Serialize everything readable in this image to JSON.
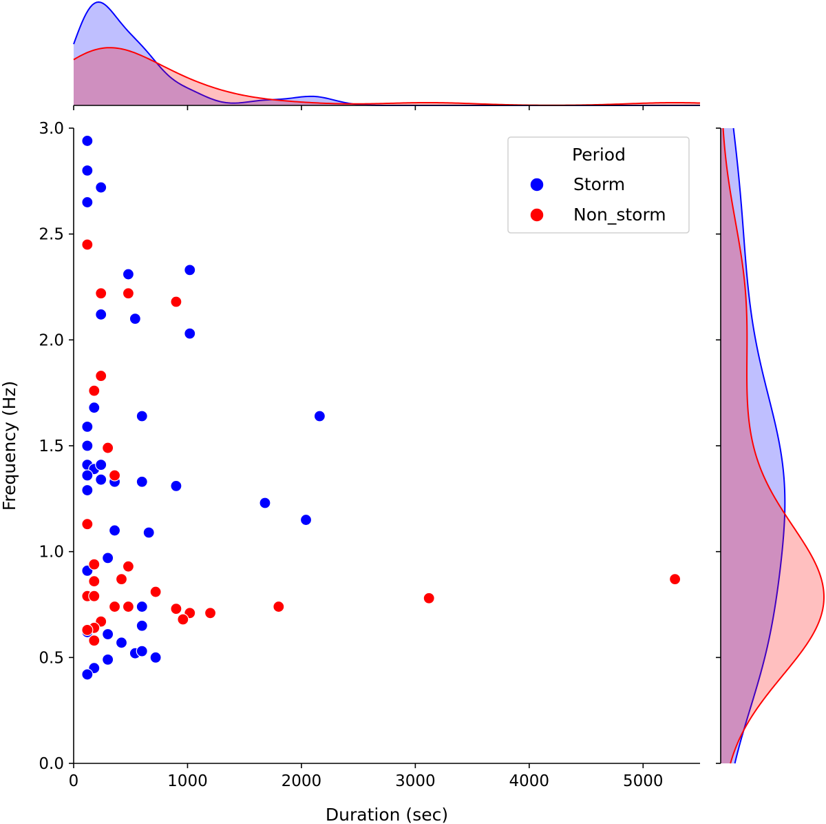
{
  "chart_data": {
    "type": "scatter",
    "xlabel": "Duration (sec)",
    "ylabel": "Frequency (Hz)",
    "xlim": [
      0,
      5500
    ],
    "ylim": [
      0,
      3.0
    ],
    "xticks": [
      "0",
      "1000",
      "2000",
      "3000",
      "4000",
      "5000"
    ],
    "yticks": [
      "0.0",
      "0.5",
      "1.0",
      "1.5",
      "2.0",
      "2.5",
      "3.0"
    ],
    "grid": false,
    "legend": {
      "title": "Period",
      "position": "top-right"
    },
    "marginals": {
      "top": "kde of duration",
      "right": "kde of frequency"
    },
    "series": [
      {
        "name": "Storm",
        "color": "#0000ff",
        "fill": "#bfbfff",
        "points": [
          [
            120,
            2.94
          ],
          [
            120,
            2.8
          ],
          [
            240,
            2.72
          ],
          [
            120,
            2.65
          ],
          [
            480,
            2.31
          ],
          [
            1020,
            2.33
          ],
          [
            240,
            2.12
          ],
          [
            540,
            2.1
          ],
          [
            1020,
            2.03
          ],
          [
            180,
            1.68
          ],
          [
            120,
            1.59
          ],
          [
            600,
            1.64
          ],
          [
            2160,
            1.64
          ],
          [
            120,
            1.5
          ],
          [
            120,
            1.41
          ],
          [
            180,
            1.39
          ],
          [
            240,
            1.41
          ],
          [
            120,
            1.36
          ],
          [
            240,
            1.34
          ],
          [
            360,
            1.33
          ],
          [
            600,
            1.33
          ],
          [
            900,
            1.31
          ],
          [
            120,
            1.29
          ],
          [
            1680,
            1.23
          ],
          [
            2040,
            1.15
          ],
          [
            360,
            1.1
          ],
          [
            660,
            1.09
          ],
          [
            300,
            0.97
          ],
          [
            120,
            0.91
          ],
          [
            600,
            0.74
          ],
          [
            600,
            0.65
          ],
          [
            120,
            0.62
          ],
          [
            300,
            0.61
          ],
          [
            420,
            0.57
          ],
          [
            540,
            0.52
          ],
          [
            600,
            0.53
          ],
          [
            720,
            0.5
          ],
          [
            300,
            0.49
          ],
          [
            180,
            0.45
          ],
          [
            120,
            0.42
          ]
        ]
      },
      {
        "name": "Non_storm",
        "color": "#ff0000",
        "fill": "#ffbfbf",
        "points": [
          [
            120,
            2.45
          ],
          [
            240,
            2.22
          ],
          [
            480,
            2.22
          ],
          [
            900,
            2.18
          ],
          [
            240,
            1.83
          ],
          [
            180,
            1.76
          ],
          [
            300,
            1.49
          ],
          [
            360,
            1.36
          ],
          [
            120,
            1.13
          ],
          [
            180,
            0.94
          ],
          [
            480,
            0.93
          ],
          [
            420,
            0.87
          ],
          [
            180,
            0.86
          ],
          [
            5280,
            0.87
          ],
          [
            720,
            0.81
          ],
          [
            120,
            0.79
          ],
          [
            180,
            0.79
          ],
          [
            3120,
            0.78
          ],
          [
            360,
            0.74
          ],
          [
            480,
            0.74
          ],
          [
            1800,
            0.74
          ],
          [
            900,
            0.73
          ],
          [
            1200,
            0.71
          ],
          [
            1020,
            0.71
          ],
          [
            960,
            0.68
          ],
          [
            240,
            0.67
          ],
          [
            180,
            0.64
          ],
          [
            120,
            0.63
          ],
          [
            180,
            0.58
          ]
        ]
      }
    ]
  }
}
